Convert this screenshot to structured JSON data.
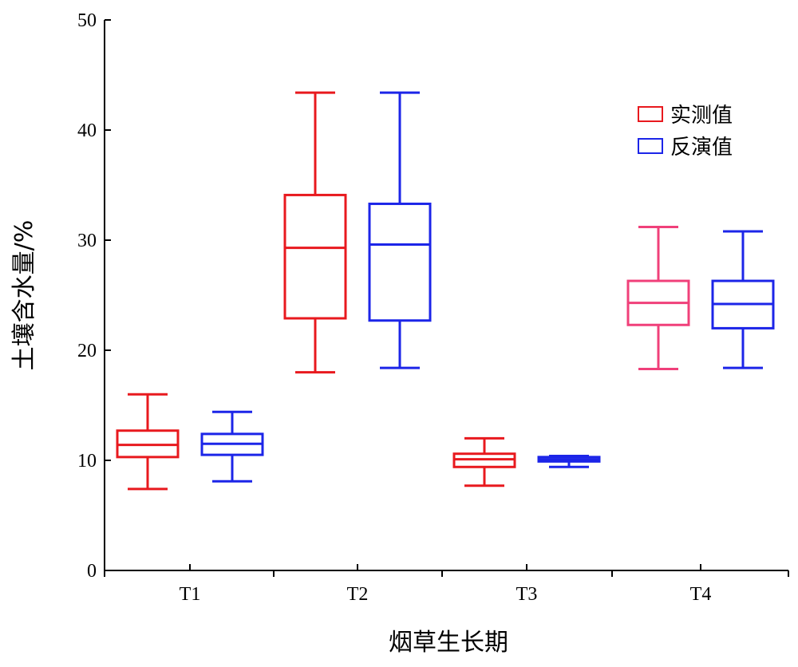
{
  "chart_data": {
    "type": "box",
    "title": "",
    "xlabel": "烟草生长期",
    "ylabel": "土壤含水量/%",
    "ylim": [
      0,
      50
    ],
    "yticks": [
      0,
      10,
      20,
      30,
      40,
      50
    ],
    "categories": [
      "T1",
      "T2",
      "T3",
      "T4"
    ],
    "grid": false,
    "legend_position": "top-right",
    "series": [
      {
        "name": "实测值",
        "color": "#e8191e",
        "boxes": [
          {
            "min": 7.4,
            "q1": 10.3,
            "median": 11.4,
            "q3": 12.7,
            "max": 16.0
          },
          {
            "min": 18.0,
            "q1": 22.9,
            "median": 29.3,
            "q3": 34.1,
            "max": 43.4
          },
          {
            "min": 7.7,
            "q1": 9.4,
            "median": 10.1,
            "q3": 10.6,
            "max": 12.0
          },
          {
            "min": 18.3,
            "q1": 22.3,
            "median": 24.3,
            "q3": 26.3,
            "max": 31.2,
            "color": "#f0407a"
          }
        ]
      },
      {
        "name": "反演值",
        "color": "#1c25e8",
        "boxes": [
          {
            "min": 8.1,
            "q1": 10.5,
            "median": 11.5,
            "q3": 12.4,
            "max": 14.4
          },
          {
            "min": 18.4,
            "q1": 22.7,
            "median": 29.6,
            "q3": 33.3,
            "max": 43.4
          },
          {
            "min": 9.4,
            "q1": 9.9,
            "median": 10.1,
            "q3": 10.3,
            "max": 10.4
          },
          {
            "min": 18.4,
            "q1": 22.0,
            "median": 24.2,
            "q3": 26.3,
            "max": 30.8
          }
        ]
      }
    ]
  }
}
